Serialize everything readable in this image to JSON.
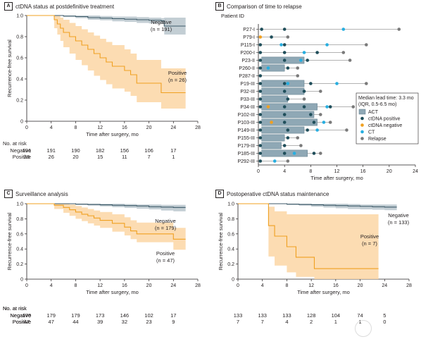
{
  "panels": {
    "A": {
      "letter": "A",
      "title": "ctDNA status at postdefinitive treatment"
    },
    "B": {
      "letter": "B",
      "title": "Comparison of time to relapse"
    },
    "C": {
      "letter": "C",
      "title": "Surveillance analysis"
    },
    "D": {
      "letter": "D",
      "title": "Postoperative ctDNA status maintenance"
    }
  },
  "colors": {
    "negative": "#3d5a68",
    "negative_band": "#b9c6cc",
    "positive": "#f0a020",
    "positive_band": "#fbd6a4",
    "act_bar": "#8fa8b5",
    "ctdna_pos": "#1f4e5a",
    "ctdna_neg": "#f0a020",
    "ct": "#27aee0",
    "relapse": "#7a7a7a"
  },
  "risk_header": "No. at risk",
  "km_axis": {
    "ylabel": "Recurrence-free survival",
    "xlabel": "Time after surgery, mo",
    "yticks": [
      "0",
      "0.2",
      "0.4",
      "0.6",
      "0.8",
      "1.0"
    ],
    "xticks": [
      "0",
      "4",
      "8",
      "12",
      "16",
      "20",
      "24",
      "28"
    ]
  },
  "chart_data": [
    {
      "id": "A",
      "type": "line",
      "xlabel": "Time after surgery, mo",
      "ylabel": "Recurrence-free survival",
      "xlim": [
        0,
        28
      ],
      "ylim": [
        0,
        1
      ],
      "series": [
        {
          "name": "Negative",
          "annotation": "(n = 191)",
          "x": [
            0,
            4,
            6,
            8,
            10,
            12,
            14,
            16,
            18,
            20,
            22,
            22.5,
            26
          ],
          "y": [
            1.0,
            1.0,
            0.995,
            0.99,
            0.98,
            0.975,
            0.97,
            0.965,
            0.96,
            0.955,
            0.95,
            0.9,
            0.9
          ],
          "lower": [
            1.0,
            1.0,
            0.985,
            0.975,
            0.96,
            0.955,
            0.945,
            0.94,
            0.93,
            0.925,
            0.92,
            0.82,
            0.82
          ],
          "upper": [
            1.0,
            1.0,
            1.0,
            1.0,
            1.0,
            0.995,
            0.99,
            0.99,
            0.985,
            0.98,
            0.975,
            0.98,
            0.98
          ]
        },
        {
          "name": "Positive",
          "annotation": "(n = 26)",
          "x": [
            0,
            4,
            4.5,
            5,
            5.5,
            6,
            7,
            8,
            9,
            10,
            11,
            12,
            13,
            14,
            16,
            17,
            18,
            22,
            26
          ],
          "y": [
            1.0,
            1.0,
            0.96,
            0.92,
            0.88,
            0.84,
            0.8,
            0.76,
            0.72,
            0.68,
            0.64,
            0.6,
            0.56,
            0.52,
            0.48,
            0.44,
            0.36,
            0.27,
            0.27
          ],
          "lower": [
            1.0,
            1.0,
            0.88,
            0.82,
            0.76,
            0.7,
            0.64,
            0.58,
            0.53,
            0.48,
            0.43,
            0.39,
            0.35,
            0.31,
            0.28,
            0.24,
            0.18,
            0.12,
            0.12
          ],
          "upper": [
            1.0,
            1.0,
            1.0,
            1.0,
            0.98,
            0.96,
            0.93,
            0.9,
            0.87,
            0.84,
            0.81,
            0.78,
            0.75,
            0.72,
            0.68,
            0.64,
            0.58,
            0.5,
            0.5
          ]
        }
      ],
      "at_risk": {
        "times": [
          0,
          4,
          8,
          12,
          16,
          20,
          24
        ],
        "rows": [
          {
            "label": "Negative",
            "values": [
              "191",
              "191",
              "190",
              "182",
              "156",
              "106",
              "17"
            ]
          },
          {
            "label": "Positive",
            "values": [
              "26",
              "26",
              "20",
              "15",
              "11",
              "7",
              "1"
            ]
          }
        ]
      }
    },
    {
      "id": "B",
      "type": "scatter",
      "ylabel": "Patient ID",
      "xlabel": "Time after surgery, mo",
      "xlim": [
        0,
        24
      ],
      "xticks": [
        "0",
        "4",
        "8",
        "12",
        "16",
        "20",
        "24"
      ],
      "legend_title": "Median lead time: 3.3 mo",
      "legend_subtitle": "(IQR, 0.5-6.5 mo)",
      "legend": [
        {
          "key": "act",
          "label": "ACT"
        },
        {
          "key": "ctdna_pos",
          "label": "ctDNA positive"
        },
        {
          "key": "ctdna_neg",
          "label": "ctDNA negative"
        },
        {
          "key": "ct",
          "label": "CT"
        },
        {
          "key": "relapse",
          "label": "Relapse"
        }
      ],
      "patients": [
        {
          "id": "P27-I",
          "act": null,
          "ctdna_pos": [
            0.5,
            4
          ],
          "ctdna_neg": [],
          "ct": [
            13
          ],
          "relapse": 21.5
        },
        {
          "id": "P79-I",
          "act": null,
          "ctdna_pos": [
            2
          ],
          "ctdna_neg": [
            0.3
          ],
          "ct": [],
          "relapse": 4.5
        },
        {
          "id": "P115-I",
          "act": null,
          "ctdna_pos": [
            0.3,
            4
          ],
          "ctdna_neg": [],
          "ct": [
            3.5,
            10.5
          ],
          "relapse": 16.5
        },
        {
          "id": "P200-I",
          "act": null,
          "ctdna_pos": [
            0.3,
            4,
            9
          ],
          "ctdna_neg": [],
          "ct": [
            7
          ],
          "relapse": 13
        },
        {
          "id": "P23-II",
          "act": [
            0.5,
            7
          ],
          "ctdna_pos": [
            0.3,
            4,
            7.5
          ],
          "ctdna_neg": [],
          "ct": [
            6.5
          ],
          "relapse": 14
        },
        {
          "id": "P260-II",
          "act": [
            0.5,
            4
          ],
          "ctdna_pos": [
            0.3,
            4.5
          ],
          "ctdna_neg": [],
          "ct": [
            1.5
          ],
          "relapse": 6
        },
        {
          "id": "P287-II",
          "act": null,
          "ctdna_pos": [
            0.3
          ],
          "ctdna_neg": [],
          "ct": [],
          "relapse": 6
        },
        {
          "id": "P19-III",
          "act": [
            0.5,
            7
          ],
          "ctdna_pos": [
            0.3,
            4,
            8
          ],
          "ctdna_neg": [],
          "ct": [
            4.5,
            12
          ],
          "relapse": 16.5
        },
        {
          "id": "P32-III",
          "act": [
            0.5,
            7
          ],
          "ctdna_pos": [
            0.3,
            4,
            7
          ],
          "ctdna_neg": [],
          "ct": [],
          "relapse": 9.5
        },
        {
          "id": "P33-III",
          "act": [
            0.5,
            4.5
          ],
          "ctdna_pos": [
            0.3,
            4.5
          ],
          "ctdna_neg": [],
          "ct": [],
          "relapse": 7
        },
        {
          "id": "P34-III",
          "act": [
            0.5,
            9
          ],
          "ctdna_pos": [
            0.3,
            4,
            7,
            11
          ],
          "ctdna_neg": [
            1.5
          ],
          "ct": [
            10.5
          ],
          "relapse": 14.5
        },
        {
          "id": "P102-III",
          "act": [
            0.5,
            8.5
          ],
          "ctdna_pos": [
            0.3,
            4,
            8
          ],
          "ctdna_neg": [],
          "ct": [],
          "relapse": 9.5
        },
        {
          "id": "P103-III",
          "act": [
            0.5,
            9
          ],
          "ctdna_pos": [
            0.3,
            4,
            8.5
          ],
          "ctdna_neg": [
            2
          ],
          "ct": [
            10
          ],
          "relapse": 11
        },
        {
          "id": "P149-III",
          "act": [
            0.5,
            7
          ],
          "ctdna_pos": [
            0.3,
            4.5,
            7.5
          ],
          "ctdna_neg": [],
          "ct": [
            9
          ],
          "relapse": 13.5
        },
        {
          "id": "P155-III",
          "act": [
            0.5,
            4
          ],
          "ctdna_pos": [
            0.3,
            4.5
          ],
          "ctdna_neg": [],
          "ct": [],
          "relapse": 6
        },
        {
          "id": "P179-III",
          "act": [
            0.5,
            3.5
          ],
          "ctdna_pos": [
            0.3,
            4
          ],
          "ctdna_neg": [],
          "ct": [],
          "relapse": 6.5
        },
        {
          "id": "P185-III",
          "act": [
            0.5,
            7.5
          ],
          "ctdna_pos": [
            0.3,
            4,
            8.5
          ],
          "ctdna_neg": [],
          "ct": [
            5.5
          ],
          "relapse": 9.5
        },
        {
          "id": "P292-III",
          "act": null,
          "ctdna_pos": [
            0.3
          ],
          "ctdna_neg": [],
          "ct": [
            2.5
          ],
          "relapse": 4.5
        }
      ]
    },
    {
      "id": "C",
      "type": "line",
      "xlabel": "Time after surgery, mo",
      "ylabel": "Recurrence-free survival",
      "xlim": [
        0,
        28
      ],
      "ylim": [
        0,
        1
      ],
      "series": [
        {
          "name": "Negative",
          "annotation": "(n = 179)",
          "x": [
            0,
            6,
            8,
            10,
            12,
            14,
            16,
            18,
            20,
            22,
            24,
            26
          ],
          "y": [
            1.0,
            1.0,
            0.995,
            0.99,
            0.985,
            0.98,
            0.975,
            0.97,
            0.96,
            0.955,
            0.95,
            0.95
          ],
          "lower": [
            1.0,
            1.0,
            0.985,
            0.975,
            0.965,
            0.955,
            0.945,
            0.935,
            0.925,
            0.91,
            0.9,
            0.9
          ],
          "upper": [
            1.0,
            1.0,
            1.0,
            1.0,
            1.0,
            1.0,
            0.995,
            0.99,
            0.99,
            0.985,
            0.985,
            0.985
          ]
        },
        {
          "name": "Positive",
          "annotation": "(n = 47)",
          "x": [
            0,
            4,
            4.5,
            6,
            7,
            8,
            9,
            10,
            11,
            12,
            14,
            16,
            17,
            18,
            22,
            24,
            26
          ],
          "y": [
            1.0,
            1.0,
            0.98,
            0.95,
            0.92,
            0.89,
            0.86,
            0.84,
            0.81,
            0.78,
            0.74,
            0.69,
            0.64,
            0.6,
            0.6,
            0.53,
            0.53
          ],
          "lower": [
            1.0,
            1.0,
            0.93,
            0.88,
            0.84,
            0.8,
            0.77,
            0.74,
            0.71,
            0.68,
            0.63,
            0.58,
            0.53,
            0.49,
            0.49,
            0.39,
            0.39
          ],
          "upper": [
            1.0,
            1.0,
            1.0,
            1.0,
            0.99,
            0.97,
            0.95,
            0.93,
            0.91,
            0.89,
            0.86,
            0.82,
            0.78,
            0.75,
            0.75,
            0.68,
            0.68
          ]
        }
      ],
      "at_risk": {
        "times": [
          0,
          4,
          8,
          12,
          16,
          20,
          24
        ],
        "rows": [
          {
            "label": "Negative",
            "values": [
              "179",
              "179",
              "179",
              "173",
              "146",
              "102",
              "17"
            ]
          },
          {
            "label": "Positive",
            "values": [
              "47",
              "47",
              "44",
              "39",
              "32",
              "23",
              "9"
            ]
          }
        ]
      }
    },
    {
      "id": "D",
      "type": "line",
      "xlabel": "Time after surgery, mo",
      "ylabel": "Recurrence-free survival",
      "xlim": [
        0,
        28
      ],
      "ylim": [
        0,
        1
      ],
      "series": [
        {
          "name": "Negative",
          "annotation": "(n = 133)",
          "x": [
            0,
            6,
            8,
            10,
            12,
            14,
            16,
            18,
            20,
            22,
            24,
            26
          ],
          "y": [
            1.0,
            1.0,
            0.995,
            0.99,
            0.985,
            0.98,
            0.975,
            0.97,
            0.965,
            0.96,
            0.955,
            0.955
          ],
          "lower": [
            1.0,
            1.0,
            0.985,
            0.975,
            0.96,
            0.95,
            0.94,
            0.93,
            0.925,
            0.92,
            0.915,
            0.915
          ],
          "upper": [
            1.0,
            1.0,
            1.0,
            1.0,
            1.0,
            1.0,
            1.0,
            0.995,
            0.99,
            0.99,
            0.99,
            0.99
          ]
        },
        {
          "name": "Positive",
          "annotation": "(n = 7)",
          "x": [
            0,
            4.5,
            5,
            6,
            8,
            9.5,
            12.5,
            23
          ],
          "y": [
            1.0,
            1.0,
            0.71,
            0.57,
            0.43,
            0.29,
            0.14,
            0.14
          ],
          "lower": [
            1.0,
            1.0,
            0.3,
            0.18,
            0.09,
            0.03,
            0.0,
            0.0
          ],
          "upper": [
            1.0,
            1.0,
            0.96,
            0.9,
            0.86,
            0.86,
            0.86,
            0.86
          ]
        }
      ],
      "at_risk": {
        "times": [
          0,
          4,
          8,
          12,
          16,
          20,
          24
        ],
        "rows": [
          {
            "label": "Negative",
            "values": [
              "133",
              "133",
              "133",
              "128",
              "104",
              "74",
              "5"
            ]
          },
          {
            "label": "Positive",
            "values": [
              "7",
              "7",
              "4",
              "2",
              "1",
              "1",
              "0"
            ]
          }
        ]
      }
    }
  ]
}
